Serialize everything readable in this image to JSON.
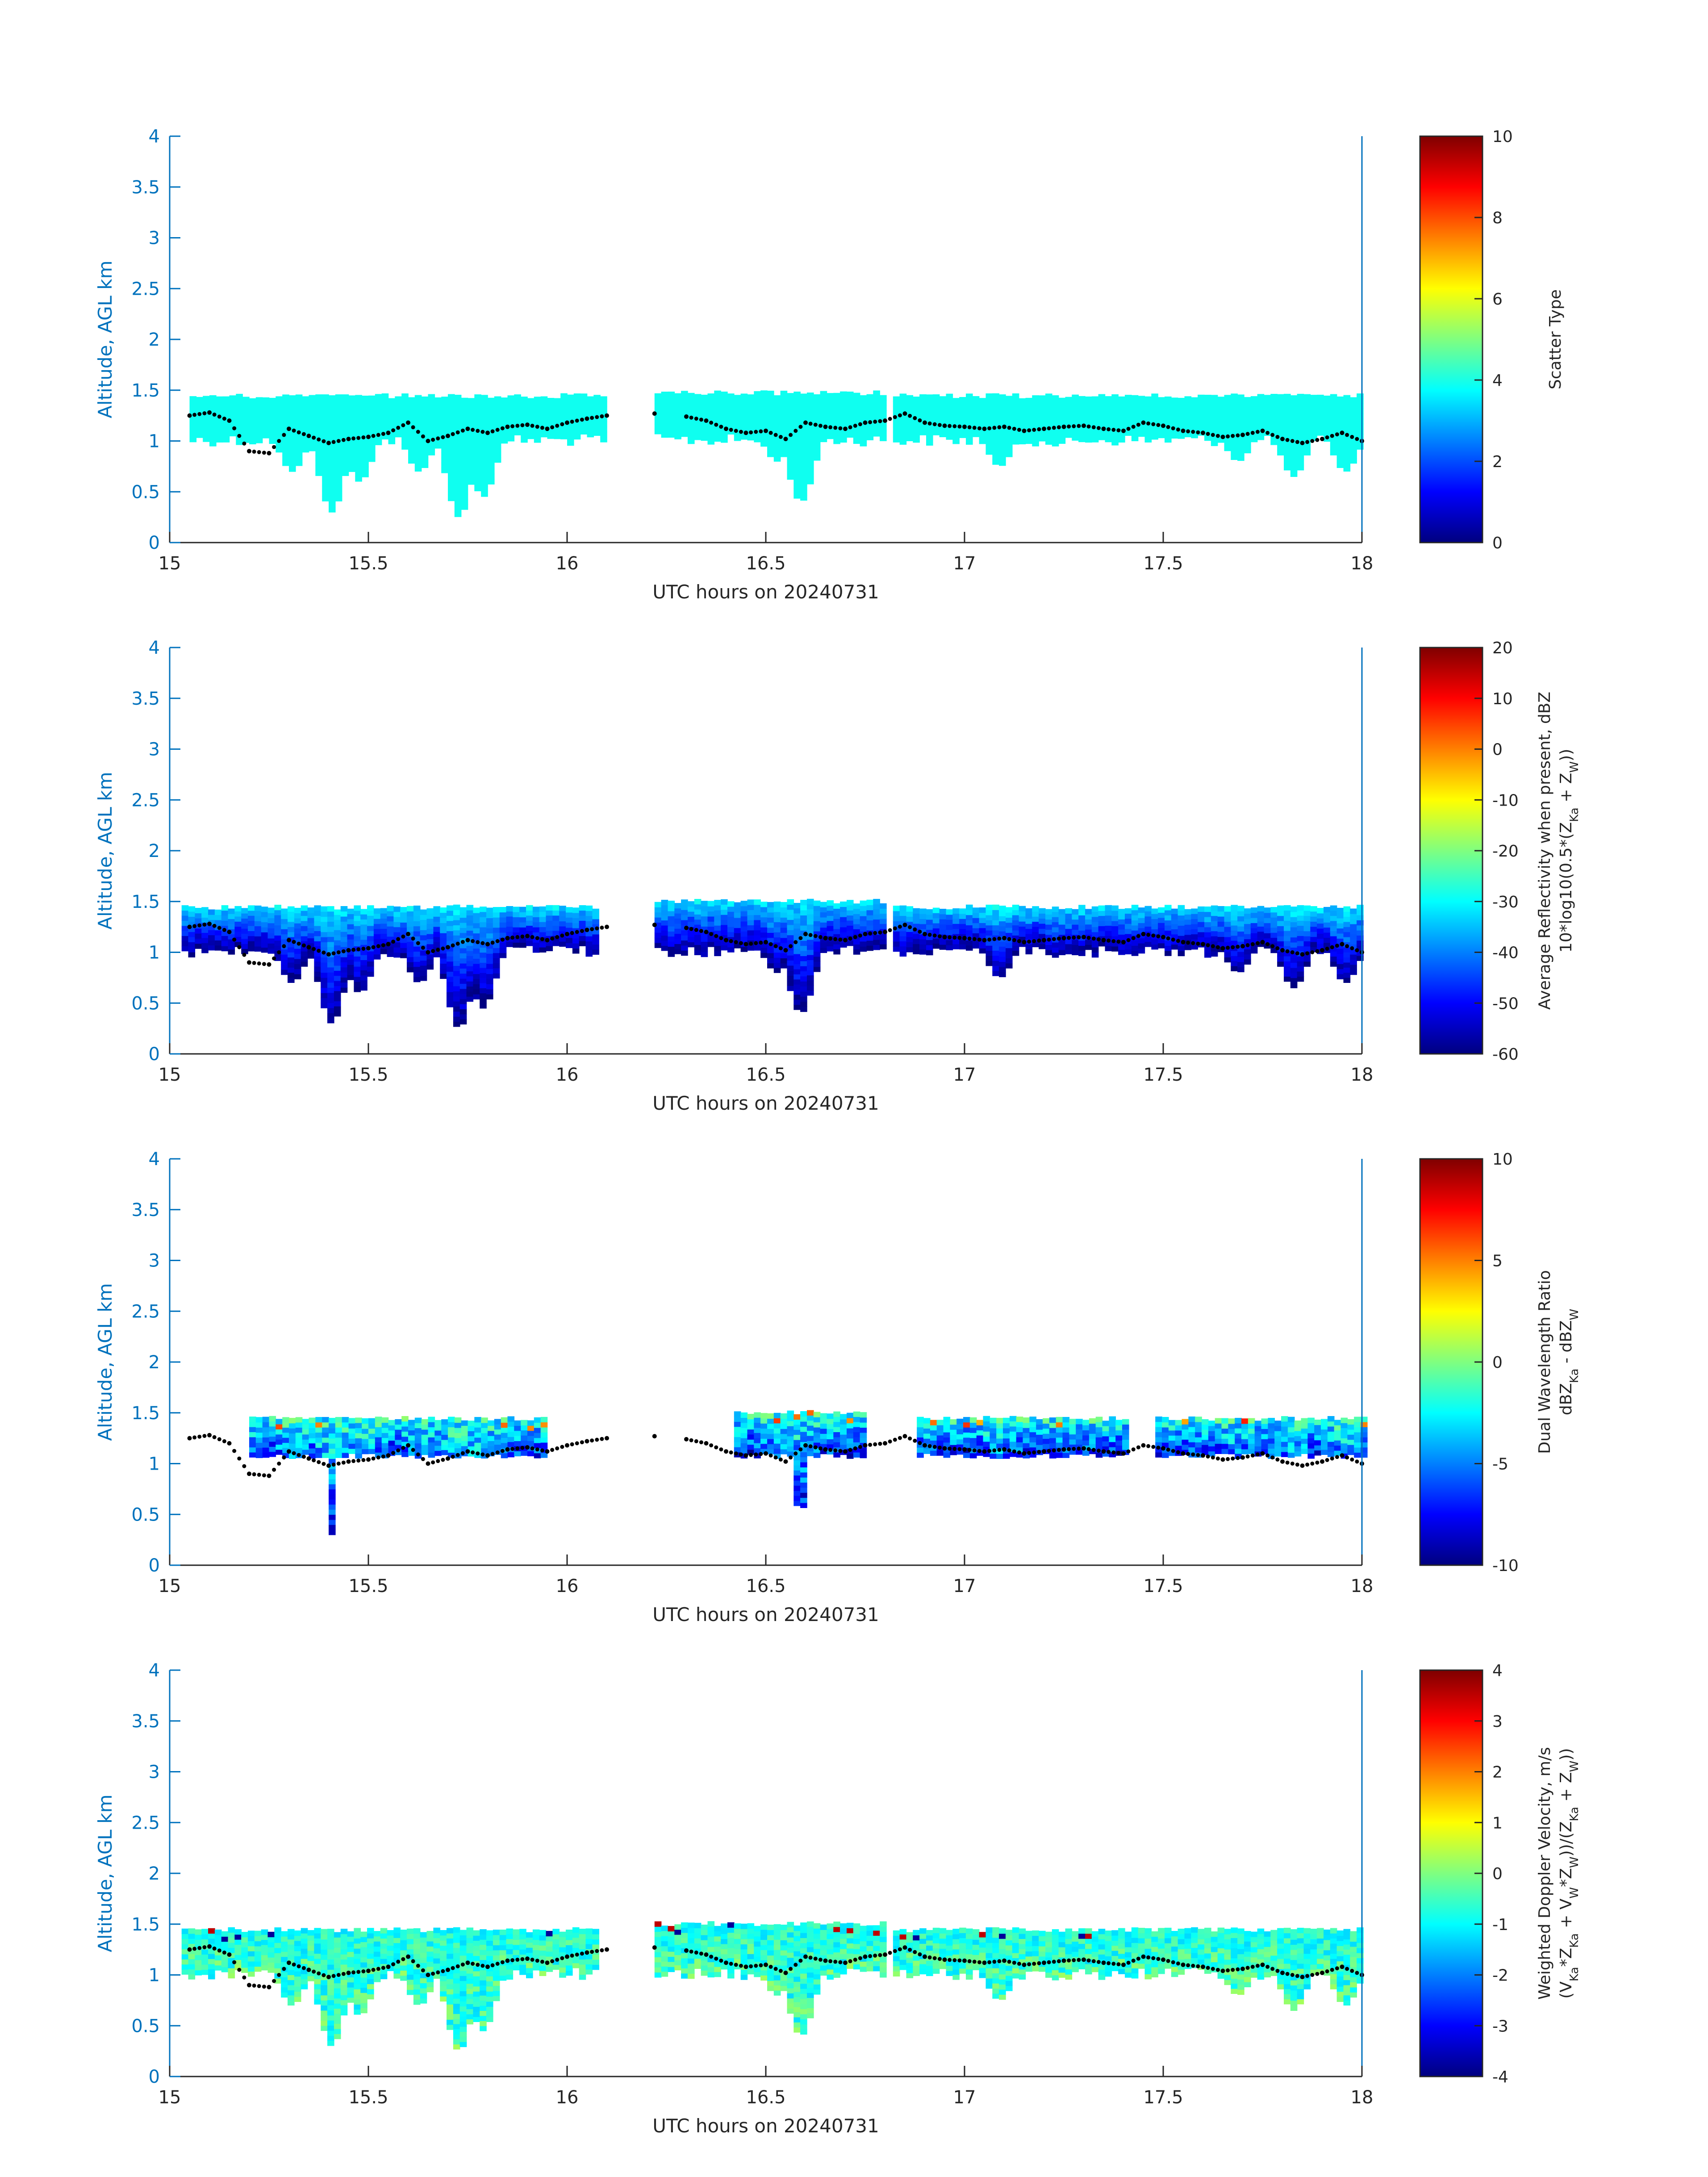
{
  "figure": {
    "xlabel": "UTC hours on 20240731",
    "ylabel": "Altitude, AGL km"
  },
  "chart_data": [
    {
      "type": "heatmap",
      "panel": 1,
      "xlabel": "UTC hours on 20240731",
      "ylabel": "Altitude, AGL km",
      "xlim": [
        15,
        18
      ],
      "ylim": [
        0,
        4
      ],
      "xticks": [
        "15",
        "15.5",
        "16",
        "16.5",
        "17",
        "17.5",
        "18"
      ],
      "yticks": [
        "0",
        "0.5",
        "1",
        "1.5",
        "2",
        "2.5",
        "3",
        "3.5",
        "4"
      ],
      "colorbar": {
        "label_lines": [
          "Scatter Type"
        ],
        "clim": [
          0,
          10
        ],
        "ticks": [
          "0",
          "2",
          "4",
          "6",
          "8",
          "10"
        ]
      },
      "uniform_value": 3.9,
      "cloud_segments": [
        {
          "x": [
            15.05,
            16.1
          ],
          "top": 1.42
        },
        {
          "x": [
            16.22,
            16.8
          ],
          "top": 1.45
        },
        {
          "x": [
            16.82,
            18.0
          ],
          "top": 1.42
        }
      ],
      "base_line": {
        "x": [
          15.05,
          15.1,
          15.15,
          15.2,
          15.25,
          15.3,
          15.35,
          15.4,
          15.45,
          15.5,
          15.55,
          15.6,
          15.65,
          15.7,
          15.75,
          15.8,
          15.85,
          15.9,
          15.95,
          16.0,
          16.05,
          16.1,
          16.22,
          16.3,
          16.35,
          16.4,
          16.45,
          16.5,
          16.55,
          16.6,
          16.65,
          16.7,
          16.75,
          16.8,
          16.85,
          16.9,
          16.95,
          17.0,
          17.05,
          17.1,
          17.15,
          17.2,
          17.25,
          17.3,
          17.35,
          17.4,
          17.45,
          17.5,
          17.55,
          17.6,
          17.65,
          17.7,
          17.75,
          17.8,
          17.85,
          17.9,
          17.95,
          18.0
        ],
        "y": [
          1.25,
          1.28,
          1.2,
          0.9,
          0.88,
          1.12,
          1.05,
          0.98,
          1.02,
          1.04,
          1.08,
          1.18,
          1.0,
          1.05,
          1.12,
          1.08,
          1.14,
          1.16,
          1.12,
          1.18,
          1.22,
          1.25,
          1.27,
          1.24,
          1.2,
          1.12,
          1.08,
          1.1,
          1.02,
          1.18,
          1.14,
          1.12,
          1.18,
          1.2,
          1.27,
          1.18,
          1.15,
          1.14,
          1.12,
          1.14,
          1.1,
          1.12,
          1.14,
          1.15,
          1.12,
          1.1,
          1.18,
          1.15,
          1.1,
          1.08,
          1.04,
          1.06,
          1.1,
          1.02,
          0.98,
          1.02,
          1.08,
          1.0
        ]
      }
    },
    {
      "type": "heatmap",
      "panel": 2,
      "xlabel": "UTC hours on 20240731",
      "ylabel": "Altitude, AGL km",
      "xlim": [
        15,
        18
      ],
      "ylim": [
        0,
        4
      ],
      "xticks": [
        "15",
        "15.5",
        "16",
        "16.5",
        "17",
        "17.5",
        "18"
      ],
      "yticks": [
        "0",
        "0.5",
        "1",
        "1.5",
        "2",
        "2.5",
        "3",
        "3.5",
        "4"
      ],
      "colorbar": {
        "label_lines": [
          "Average Reflectivity when present, dBZ",
          "10*log10(0.5*(Z_Ka + Z_W))"
        ],
        "clim": [
          -60,
          20
        ],
        "ticks": [
          "-60",
          "-50",
          "-40",
          "-30",
          "-20",
          "-10",
          "0",
          "10",
          "20"
        ]
      },
      "value_range_in_cloud": [
        -60,
        -30
      ],
      "cloud_segments": [
        {
          "x": [
            15.03,
            16.08
          ],
          "top": 1.42
        },
        {
          "x": [
            16.22,
            16.8
          ],
          "top": 1.48
        },
        {
          "x": [
            16.82,
            18.0
          ],
          "top": 1.42
        }
      ]
    },
    {
      "type": "heatmap",
      "panel": 3,
      "xlabel": "UTC hours on 20240731",
      "ylabel": "Altitude, AGL km",
      "xlim": [
        15,
        18
      ],
      "ylim": [
        0,
        4
      ],
      "xticks": [
        "15",
        "15.5",
        "16",
        "16.5",
        "17",
        "17.5",
        "18"
      ],
      "yticks": [
        "0",
        "0.5",
        "1",
        "1.5",
        "2",
        "2.5",
        "3",
        "3.5",
        "4"
      ],
      "colorbar": {
        "label_lines": [
          "Dual Wavelength Ratio",
          "dBZ_Ka - dBZ_W"
        ],
        "clim": [
          -10,
          10
        ],
        "ticks": [
          "-10",
          "-5",
          "0",
          "5",
          "10"
        ]
      },
      "value_range_in_cloud": [
        -10,
        2
      ],
      "cloud_segments": [
        {
          "x": [
            15.2,
            15.95
          ],
          "top": 1.42
        },
        {
          "x": [
            16.42,
            16.75
          ],
          "top": 1.48
        },
        {
          "x": [
            16.88,
            17.4
          ],
          "top": 1.42
        },
        {
          "x": [
            17.48,
            18.0
          ],
          "top": 1.42
        }
      ]
    },
    {
      "type": "heatmap",
      "panel": 4,
      "xlabel": "UTC hours on 20240731",
      "ylabel": "Altitude, AGL km",
      "xlim": [
        15,
        18
      ],
      "ylim": [
        0,
        4
      ],
      "xticks": [
        "15",
        "15.5",
        "16",
        "16.5",
        "17",
        "17.5",
        "18"
      ],
      "yticks": [
        "0",
        "0.5",
        "1",
        "1.5",
        "2",
        "2.5",
        "3",
        "3.5",
        "4"
      ],
      "colorbar": {
        "label_lines": [
          "Weighted Doppler Velocity, m/s",
          "(V_Ka*Z_Ka + V_W*Z_W))/(Z_Ka + Z_W))"
        ],
        "clim": [
          -4,
          4
        ],
        "ticks": [
          "-4",
          "-3",
          "-2",
          "-1",
          "0",
          "1",
          "2",
          "3",
          "4"
        ]
      },
      "value_range_in_cloud": [
        -2.5,
        1
      ],
      "cloud_segments": [
        {
          "x": [
            15.03,
            16.08
          ],
          "top": 1.42
        },
        {
          "x": [
            16.22,
            16.8
          ],
          "top": 1.48
        },
        {
          "x": [
            16.82,
            18.0
          ],
          "top": 1.42
        }
      ]
    }
  ]
}
